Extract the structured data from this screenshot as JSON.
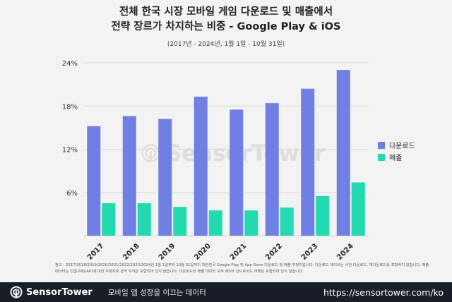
{
  "title_line1": "전체 한국 시장 모바일 게임 다운로드 및 매출에서",
  "title_line2": "전략 장르가 차지하는 비중 - Google Play & iOS",
  "subtitle": "(2017년 - 2024년, 1월 1일 - 10월 31일)",
  "watermark": "SensorTower",
  "footnote": "참고 : 2017/2018/2019/2020/2021/2022/2023/2024년 1월 1일부터 10월 31일까지 대한민국 Google Play 및 App Store 다운로드 및 매출 추정치입니다. 다운로드 데이터는 사전 다운로드, 재다운로드를 포함하지 않습니다. 매출 데이터는 인앱구매(IAP)에 대한 추정치로 궁극 수익은 포함되어 있지 않습니다. 다운로드와 매출 데이터 모두 제3자 안드로이드 마켓은 포함되어 있지 않습니다.",
  "footer": {
    "brand": "SensorTower",
    "tagline": "모바일 앱 성장을 이끄는 데이터",
    "url": "https://sensortower.com/ko"
  },
  "colors": {
    "downloads": "#6f7fe4",
    "revenue": "#22d9b0",
    "grid": "#d9d9d9",
    "footer_bg": "#191e26"
  },
  "chart_data": {
    "type": "bar",
    "categories": [
      "2017",
      "2018",
      "2019",
      "2020",
      "2021",
      "2022",
      "2023",
      "2024"
    ],
    "series": [
      {
        "name": "다운로드",
        "values": [
          15.2,
          16.6,
          16.2,
          19.3,
          17.5,
          18.4,
          20.4,
          23.0
        ]
      },
      {
        "name": "매출",
        "values": [
          4.5,
          4.5,
          4.0,
          3.5,
          3.5,
          3.9,
          5.5,
          7.4
        ]
      }
    ],
    "ylim": [
      0,
      24
    ],
    "yticks": [
      6,
      12,
      18,
      24
    ],
    "ytick_labels": [
      "6%",
      "12%",
      "18%",
      "24%"
    ],
    "grid": true,
    "legend_position": "right"
  }
}
